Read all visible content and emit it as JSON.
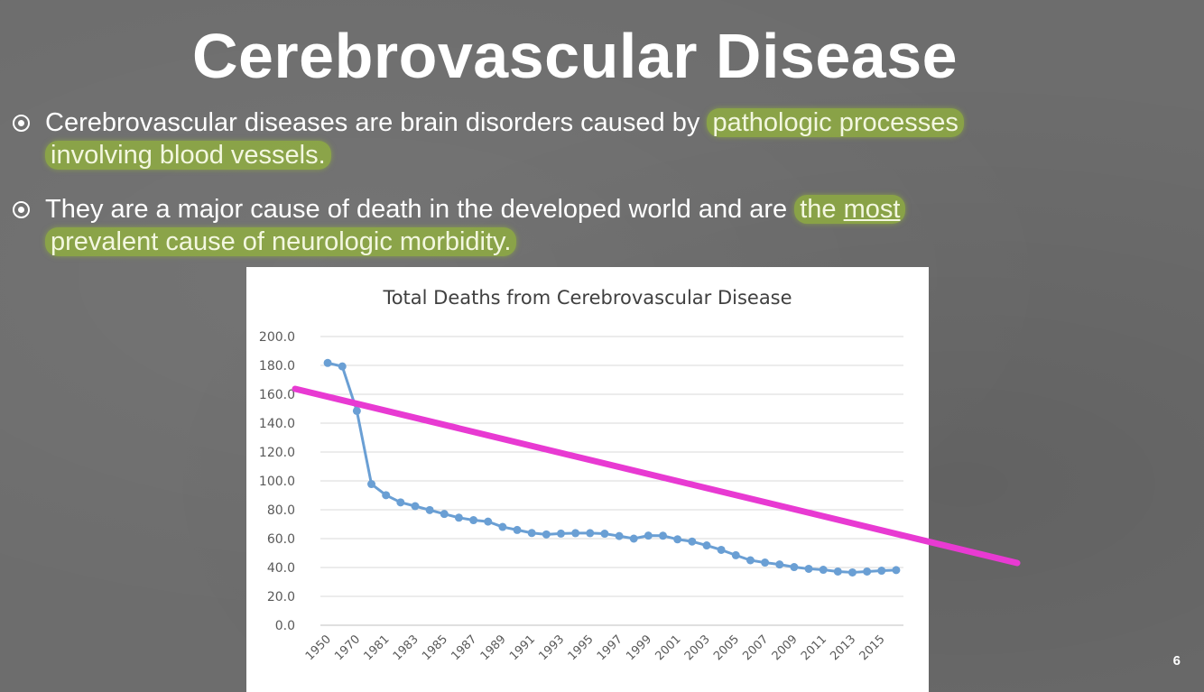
{
  "slide": {
    "title": "Cerebrovascular Disease",
    "number": "6",
    "bullets": [
      {
        "plain": "Cerebrovascular diseases are brain disorders caused by ",
        "highlight_a": "pathologic processes",
        "highlight_b": "involving blood vessels."
      },
      {
        "plain": "They are a major cause of death in the developed world and are ",
        "highlight_a_pre": "the ",
        "highlight_a_ul": "most",
        "highlight_b": "prevalent cause of neurologic morbidity."
      }
    ],
    "colors": {
      "background": "#6d6d6d",
      "highlight": "#96b937",
      "series": "#6a9fd4",
      "trendline": "#e83ad2"
    }
  },
  "chart_data": {
    "type": "line",
    "title": "Total Deaths from Cerebrovascular Disease",
    "xlabel": "",
    "ylabel": "",
    "ylim": [
      0,
      200
    ],
    "yticks": [
      "0.0",
      "20.0",
      "40.0",
      "60.0",
      "80.0",
      "100.0",
      "120.0",
      "140.0",
      "160.0",
      "180.0",
      "200.0"
    ],
    "grid": true,
    "legend": "none",
    "x_tick_labels": [
      "1950",
      "1970",
      "1981",
      "1983",
      "1985",
      "1987",
      "1989",
      "1991",
      "1993",
      "1995",
      "1997",
      "1999",
      "2001",
      "2003",
      "2005",
      "2007",
      "2009",
      "2011",
      "2013",
      "2015"
    ],
    "categories": [
      "1950",
      "1960",
      "1970",
      "1980",
      "1981",
      "1982",
      "1983",
      "1984",
      "1985",
      "1986",
      "1987",
      "1988",
      "1989",
      "1990",
      "1991",
      "1992",
      "1993",
      "1994",
      "1995",
      "1996",
      "1997",
      "1998",
      "1999",
      "2000",
      "2001",
      "2002",
      "2003",
      "2004",
      "2005",
      "2006",
      "2007",
      "2008",
      "2009",
      "2010",
      "2011",
      "2012",
      "2013",
      "2014",
      "2015",
      "2016"
    ],
    "series": [
      {
        "values": [
          181.7,
          179.3,
          148.5,
          97.8,
          90.1,
          85.1,
          82.5,
          79.8,
          77.1,
          74.5,
          72.8,
          71.8,
          68.1,
          66.0,
          63.9,
          62.9,
          63.5,
          63.8,
          63.8,
          63.4,
          61.8,
          60.0,
          62.1,
          62.0,
          59.5,
          58.0,
          55.3,
          52.2,
          48.5,
          45.0,
          43.4,
          42.1,
          40.3,
          39.1,
          38.4,
          37.2,
          36.6,
          37.2,
          37.8,
          38.2
        ]
      }
    ],
    "annotations": [
      {
        "type": "trendline",
        "color": "#e83ad2"
      }
    ]
  }
}
